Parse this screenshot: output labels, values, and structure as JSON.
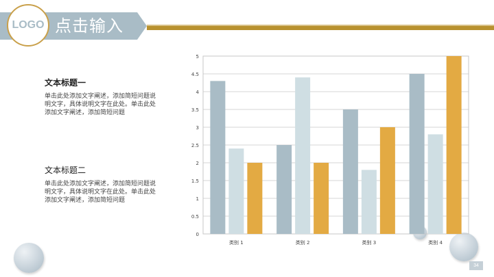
{
  "header": {
    "title": "点击输入",
    "logo_text": "LOGO"
  },
  "blocks": [
    {
      "title": "文本标题一",
      "body": "单击此处添加文字阐述，添加简短问题说明文字，具体说明文字在此处。单击此处添加文字阐述，添加简短问题"
    },
    {
      "title": "文本标题二",
      "body": "单击此处添加文字阐述，添加简短问题说明文字，具体说明文字在此处。单击此处添加文字阐述，添加简短问题"
    }
  ],
  "page_number": "34",
  "colors": {
    "series1": "#a9bcc6",
    "series2": "#cfdee3",
    "series3": "#e3aa43",
    "gold": "#b8912f"
  },
  "chart_data": {
    "type": "bar",
    "categories": [
      "类别 1",
      "类别 2",
      "类别 3",
      "类别 4"
    ],
    "series": [
      {
        "values": [
          4.3,
          2.5,
          3.5,
          4.5
        ]
      },
      {
        "values": [
          2.4,
          4.4,
          1.8,
          2.8
        ]
      },
      {
        "values": [
          2.0,
          2.0,
          3.0,
          5.0
        ]
      }
    ],
    "ylim": [
      0,
      5
    ],
    "yticks": [
      "0",
      "0.5",
      "1",
      "1.5",
      "2",
      "2.5",
      "3",
      "3.5",
      "4",
      "4.5",
      "5"
    ],
    "grid": true,
    "legend": "none"
  }
}
